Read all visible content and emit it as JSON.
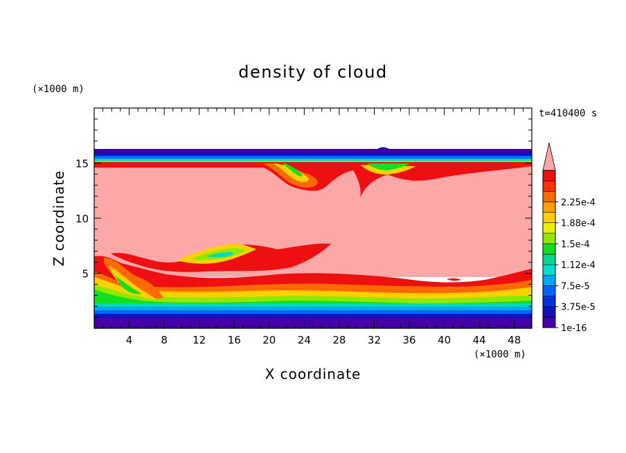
{
  "chart_data": {
    "type": "heatmap",
    "title": "density of cloud",
    "xlabel": "X coordinate",
    "ylabel": "Z coordinate",
    "x_unit": "(×1000 m)",
    "y_unit": "(×1000 m)",
    "time_label": "t=410400 s",
    "xlim": [
      0,
      50
    ],
    "ylim": [
      0,
      20
    ],
    "x_ticks": [
      4,
      8,
      12,
      16,
      20,
      24,
      28,
      32,
      36,
      40,
      44,
      48
    ],
    "y_ticks": [
      5,
      10,
      15
    ],
    "colorbar": {
      "labels": [
        "1e-16",
        "3.75e-5",
        "7.5e-5",
        "1.12e-4",
        "1.5e-4",
        "1.88e-4",
        "2.25e-4"
      ],
      "levels": [
        1e-16,
        3.75e-05,
        7.5e-05,
        0.000112,
        0.00015,
        0.000188,
        0.000225
      ],
      "colors": [
        "#4400a8",
        "#1010b8",
        "#0030e0",
        "#0064ff",
        "#00a8ff",
        "#00e0c8",
        "#00d890",
        "#10e020",
        "#90e800",
        "#e8f000",
        "#ffd000",
        "#ffa000",
        "#ff6a00",
        "#ff3000",
        "#ee1010",
        "#fda8a8"
      ],
      "extend_max": true,
      "overflow_color": "#fda8a8"
    },
    "layers": [
      {
        "level": "top boundary",
        "color": "#3a00a8",
        "z_range": [
          15.9,
          16.1
        ]
      },
      {
        "level": "saturated cloud core",
        "color": "#fda8a8",
        "z_range": [
          4,
          15
        ]
      },
      {
        "level": "near-ground",
        "color": "#4400a8",
        "z_range": [
          0,
          1
        ]
      }
    ],
    "grid": false,
    "legend": "right colorbar"
  }
}
